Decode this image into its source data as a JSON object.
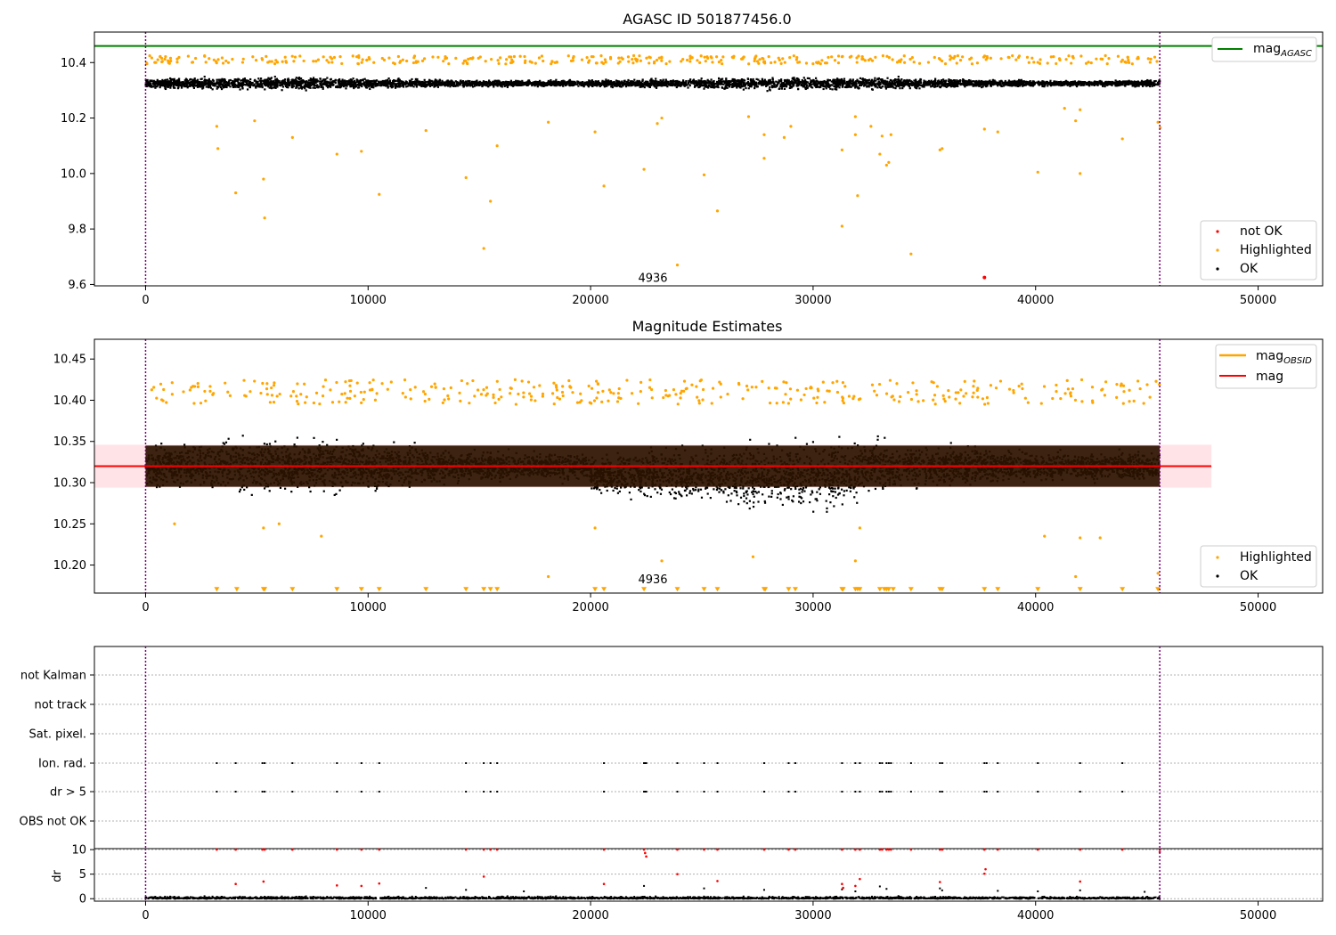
{
  "chart_data": [
    {
      "type": "scatter",
      "title": "AGASC ID 501877456.0",
      "xlim": [
        -2300,
        52900
      ],
      "ylim": [
        9.595,
        10.51
      ],
      "x_ticks": [
        0,
        10000,
        20000,
        30000,
        40000,
        50000
      ],
      "y_ticks": [
        9.6,
        9.8,
        10.0,
        10.2,
        10.4
      ],
      "y_tick_labels": [
        "9.6",
        "9.8",
        "10.0",
        "10.2",
        "10.4"
      ],
      "vlines": [
        0,
        45580
      ],
      "hlines": [
        {
          "name": "mag_AGASC",
          "y": 10.46,
          "color": "#008000"
        }
      ],
      "annotation": {
        "text": "4936",
        "x": 22800,
        "y": 9.61
      },
      "legend_upper": {
        "position": "upper right",
        "entries": [
          {
            "base": "mag",
            "sub": "AGASC",
            "color": "#008000"
          }
        ]
      },
      "legend_lower": {
        "position": "lower right",
        "entries": [
          {
            "label": "not OK",
            "color": "#ff0000"
          },
          {
            "label": "Highlighted",
            "color": "#ffa500"
          },
          {
            "label": "OK",
            "color": "#000000"
          }
        ]
      },
      "ok_band": {
        "x": [
          0,
          45580
        ],
        "center": 10.325,
        "spread": 0.03
      },
      "series": [
        {
          "name": "Highlighted",
          "color": "#ffa500",
          "points": [
            [
              3200,
              10.17
            ],
            [
              3250,
              10.09
            ],
            [
              4050,
              9.93
            ],
            [
              4900,
              10.19
            ],
            [
              5300,
              9.98
            ],
            [
              5350,
              9.84
            ],
            [
              6600,
              10.13
            ],
            [
              8600,
              10.07
            ],
            [
              9700,
              10.08
            ],
            [
              10500,
              9.925
            ],
            [
              12600,
              10.155
            ],
            [
              14400,
              9.985
            ],
            [
              15200,
              9.73
            ],
            [
              15500,
              9.9
            ],
            [
              15800,
              10.1
            ],
            [
              18100,
              10.185
            ],
            [
              20200,
              10.15
            ],
            [
              20600,
              9.955
            ],
            [
              22400,
              10.015
            ],
            [
              23000,
              10.18
            ],
            [
              23200,
              10.2
            ],
            [
              23900,
              9.67
            ],
            [
              25100,
              9.995
            ],
            [
              25700,
              9.865
            ],
            [
              27100,
              10.205
            ],
            [
              27800,
              10.14
            ],
            [
              27800,
              10.055
            ],
            [
              28700,
              10.13
            ],
            [
              29000,
              10.17
            ],
            [
              31300,
              10.085
            ],
            [
              31300,
              9.81
            ],
            [
              31900,
              10.205
            ],
            [
              31900,
              10.14
            ],
            [
              32000,
              9.92
            ],
            [
              32600,
              10.17
            ],
            [
              33000,
              10.07
            ],
            [
              33100,
              10.135
            ],
            [
              33300,
              10.03
            ],
            [
              33400,
              10.04
            ],
            [
              33500,
              10.14
            ],
            [
              34400,
              9.71
            ],
            [
              35700,
              10.085
            ],
            [
              35800,
              10.09
            ],
            [
              37700,
              10.16
            ],
            [
              38300,
              10.15
            ],
            [
              40100,
              10.005
            ],
            [
              41300,
              10.235
            ],
            [
              41800,
              10.19
            ],
            [
              42000,
              10.0
            ],
            [
              42000,
              10.23
            ],
            [
              43900,
              10.125
            ],
            [
              45500,
              10.185
            ],
            [
              45600,
              10.165
            ]
          ]
        },
        {
          "name": "not OK",
          "color": "#ff0000",
          "points": [
            [
              37700,
              9.625
            ]
          ]
        }
      ]
    },
    {
      "type": "scatter",
      "title": "Magnitude Estimates",
      "xlim": [
        -2300,
        52900
      ],
      "ylim": [
        10.166,
        10.474
      ],
      "x_ticks": [
        0,
        10000,
        20000,
        30000,
        40000,
        50000
      ],
      "y_ticks": [
        10.2,
        10.25,
        10.3,
        10.35,
        10.4,
        10.45
      ],
      "y_tick_labels": [
        "10.20",
        "10.25",
        "10.30",
        "10.35",
        "10.40",
        "10.45"
      ],
      "vlines": [
        0,
        45580
      ],
      "hlines": [
        {
          "name": "mag",
          "y": 10.32,
          "color": "#ff0000",
          "x": [
            -2300,
            47900
          ]
        }
      ],
      "band": {
        "y": [
          10.294,
          10.346
        ],
        "x": [
          -2300,
          47900
        ],
        "color": "#ffc0c8"
      },
      "annotation": {
        "text": "4936",
        "x": 22800,
        "y": 10.178
      },
      "legend_upper": {
        "position": "upper right",
        "entries": [
          {
            "base": "mag",
            "sub": "OBSID",
            "color": "#ffa500"
          },
          {
            "base": "mag",
            "sub": "",
            "color": "#ff0000"
          }
        ]
      },
      "legend_lower": {
        "position": "lower right",
        "entries": [
          {
            "label": "Highlighted",
            "color": "#ffa500"
          },
          {
            "label": "OK",
            "color": "#000000"
          }
        ]
      },
      "ok_band": {
        "x": [
          0,
          45580
        ],
        "center": 10.32,
        "spread": 0.045
      },
      "series": [
        {
          "name": "Highlighted",
          "color": "#ffa500",
          "points": [
            [
              1300,
              10.25
            ],
            [
              5300,
              10.245
            ],
            [
              6000,
              10.25
            ],
            [
              7900,
              10.235
            ],
            [
              18100,
              10.186
            ],
            [
              20200,
              10.245
            ],
            [
              23200,
              10.205
            ],
            [
              27300,
              10.21
            ],
            [
              31900,
              10.205
            ],
            [
              32100,
              10.245
            ],
            [
              40400,
              10.235
            ],
            [
              41800,
              10.186
            ],
            [
              42000,
              10.233
            ],
            [
              42900,
              10.233
            ],
            [
              45500,
              10.19
            ]
          ]
        },
        {
          "name": "Highlighted (below range)",
          "color": "#ffa500",
          "points": [
            [
              3200,
              10.17
            ],
            [
              4100,
              10.17
            ],
            [
              5300,
              10.17
            ],
            [
              5350,
              10.17
            ],
            [
              6600,
              10.17
            ],
            [
              8600,
              10.17
            ],
            [
              9700,
              10.17
            ],
            [
              10500,
              10.17
            ],
            [
              12600,
              10.17
            ],
            [
              14400,
              10.17
            ],
            [
              15200,
              10.17
            ],
            [
              15500,
              10.17
            ],
            [
              15800,
              10.17
            ],
            [
              20200,
              10.17
            ],
            [
              20600,
              10.17
            ],
            [
              22400,
              10.17
            ],
            [
              23900,
              10.17
            ],
            [
              25100,
              10.17
            ],
            [
              25700,
              10.17
            ],
            [
              27800,
              10.17
            ],
            [
              27850,
              10.17
            ],
            [
              28900,
              10.17
            ],
            [
              29200,
              10.17
            ],
            [
              31300,
              10.17
            ],
            [
              31350,
              10.17
            ],
            [
              31900,
              10.17
            ],
            [
              32000,
              10.17
            ],
            [
              32100,
              10.17
            ],
            [
              33000,
              10.17
            ],
            [
              33200,
              10.17
            ],
            [
              33300,
              10.17
            ],
            [
              33400,
              10.17
            ],
            [
              33600,
              10.17
            ],
            [
              34400,
              10.17
            ],
            [
              35700,
              10.17
            ],
            [
              35800,
              10.17
            ],
            [
              37700,
              10.17
            ],
            [
              38300,
              10.17
            ],
            [
              40100,
              10.17
            ],
            [
              42000,
              10.17
            ],
            [
              43900,
              10.17
            ],
            [
              45500,
              10.17
            ]
          ]
        }
      ]
    },
    {
      "type": "scatter",
      "title": "",
      "xlim": [
        -2300,
        52900
      ],
      "x_ticks": [
        0,
        10000,
        20000,
        30000,
        40000,
        50000
      ],
      "vlines": [
        0,
        45580
      ],
      "flag_labels": [
        "not Kalman",
        "not track",
        "Sat. pixel.",
        "Ion. rad.",
        "dr > 5",
        "OBS not OK"
      ],
      "flag_points": {
        "Ion. rad.": [
          3200,
          4050,
          5250,
          5350,
          6600,
          8600,
          9700,
          10500,
          14400,
          15200,
          15500,
          15800,
          20600,
          22400,
          22450,
          22500,
          23900,
          25100,
          25700,
          27800,
          28900,
          29200,
          31300,
          31900,
          32100,
          33000,
          33100,
          33300,
          33400,
          33500,
          34400,
          35700,
          35800,
          37700,
          37800,
          38300,
          40100,
          42000,
          43900
        ],
        "dr > 5": [
          3200,
          4050,
          5250,
          5350,
          6600,
          8600,
          9700,
          10500,
          14400,
          15200,
          15500,
          15800,
          20600,
          22400,
          22450,
          22500,
          23900,
          25100,
          25700,
          27800,
          28900,
          29200,
          31300,
          31900,
          32100,
          33000,
          33100,
          33300,
          33400,
          33500,
          34400,
          35700,
          35800,
          37700,
          37800,
          38300,
          40100,
          42000,
          43900
        ]
      },
      "dr": {
        "ylabel": "dr",
        "ylim": [
          -0.5,
          10.2
        ],
        "y_ticks": [
          0,
          5,
          10
        ],
        "y_tick_labels": [
          "0",
          "5",
          "10"
        ],
        "red_points": [
          [
            3200,
            10
          ],
          [
            4050,
            10
          ],
          [
            5250,
            10
          ],
          [
            5350,
            10
          ],
          [
            6600,
            10
          ],
          [
            8600,
            10
          ],
          [
            9700,
            10
          ],
          [
            10500,
            10
          ],
          [
            14400,
            10
          ],
          [
            15200,
            10
          ],
          [
            15500,
            10
          ],
          [
            15800,
            10
          ],
          [
            20600,
            10
          ],
          [
            22400,
            10
          ],
          [
            22450,
            9.3
          ],
          [
            22500,
            8.6
          ],
          [
            23900,
            10
          ],
          [
            25100,
            10
          ],
          [
            25700,
            10
          ],
          [
            27800,
            10
          ],
          [
            28900,
            10
          ],
          [
            29200,
            10
          ],
          [
            31300,
            10
          ],
          [
            31900,
            10
          ],
          [
            32100,
            10
          ],
          [
            33000,
            10
          ],
          [
            33100,
            10
          ],
          [
            33300,
            10
          ],
          [
            33400,
            10
          ],
          [
            33500,
            10
          ],
          [
            34400,
            10
          ],
          [
            35700,
            10
          ],
          [
            35800,
            10
          ],
          [
            37700,
            10
          ],
          [
            37750,
            6
          ],
          [
            38300,
            10
          ],
          [
            40100,
            10
          ],
          [
            42000,
            10
          ],
          [
            43900,
            10
          ],
          [
            45580,
            10
          ],
          [
            45580,
            9.5
          ],
          [
            4050,
            3
          ],
          [
            5300,
            3.5
          ],
          [
            8600,
            2.7
          ],
          [
            9700,
            2.6
          ],
          [
            10500,
            3.1
          ],
          [
            15200,
            4.5
          ],
          [
            20600,
            3
          ],
          [
            23900,
            5
          ],
          [
            25700,
            3.6
          ],
          [
            31300,
            3
          ],
          [
            31350,
            2.2
          ],
          [
            31900,
            2.6
          ],
          [
            32100,
            4
          ],
          [
            35700,
            3.4
          ],
          [
            37700,
            5.1
          ],
          [
            42000,
            3.5
          ]
        ],
        "black_points": [
          [
            12600,
            2.2
          ],
          [
            14400,
            1.8
          ],
          [
            17000,
            1.5
          ],
          [
            22400,
            2.6
          ],
          [
            25100,
            2.1
          ],
          [
            27800,
            1.8
          ],
          [
            31300,
            1.9
          ],
          [
            31900,
            1.5
          ],
          [
            33000,
            2.5
          ],
          [
            33300,
            2.0
          ],
          [
            35700,
            2.1
          ],
          [
            35800,
            1.7
          ],
          [
            38300,
            1.6
          ],
          [
            40100,
            1.5
          ],
          [
            42000,
            1.7
          ],
          [
            44900,
            1.4
          ]
        ]
      }
    }
  ]
}
